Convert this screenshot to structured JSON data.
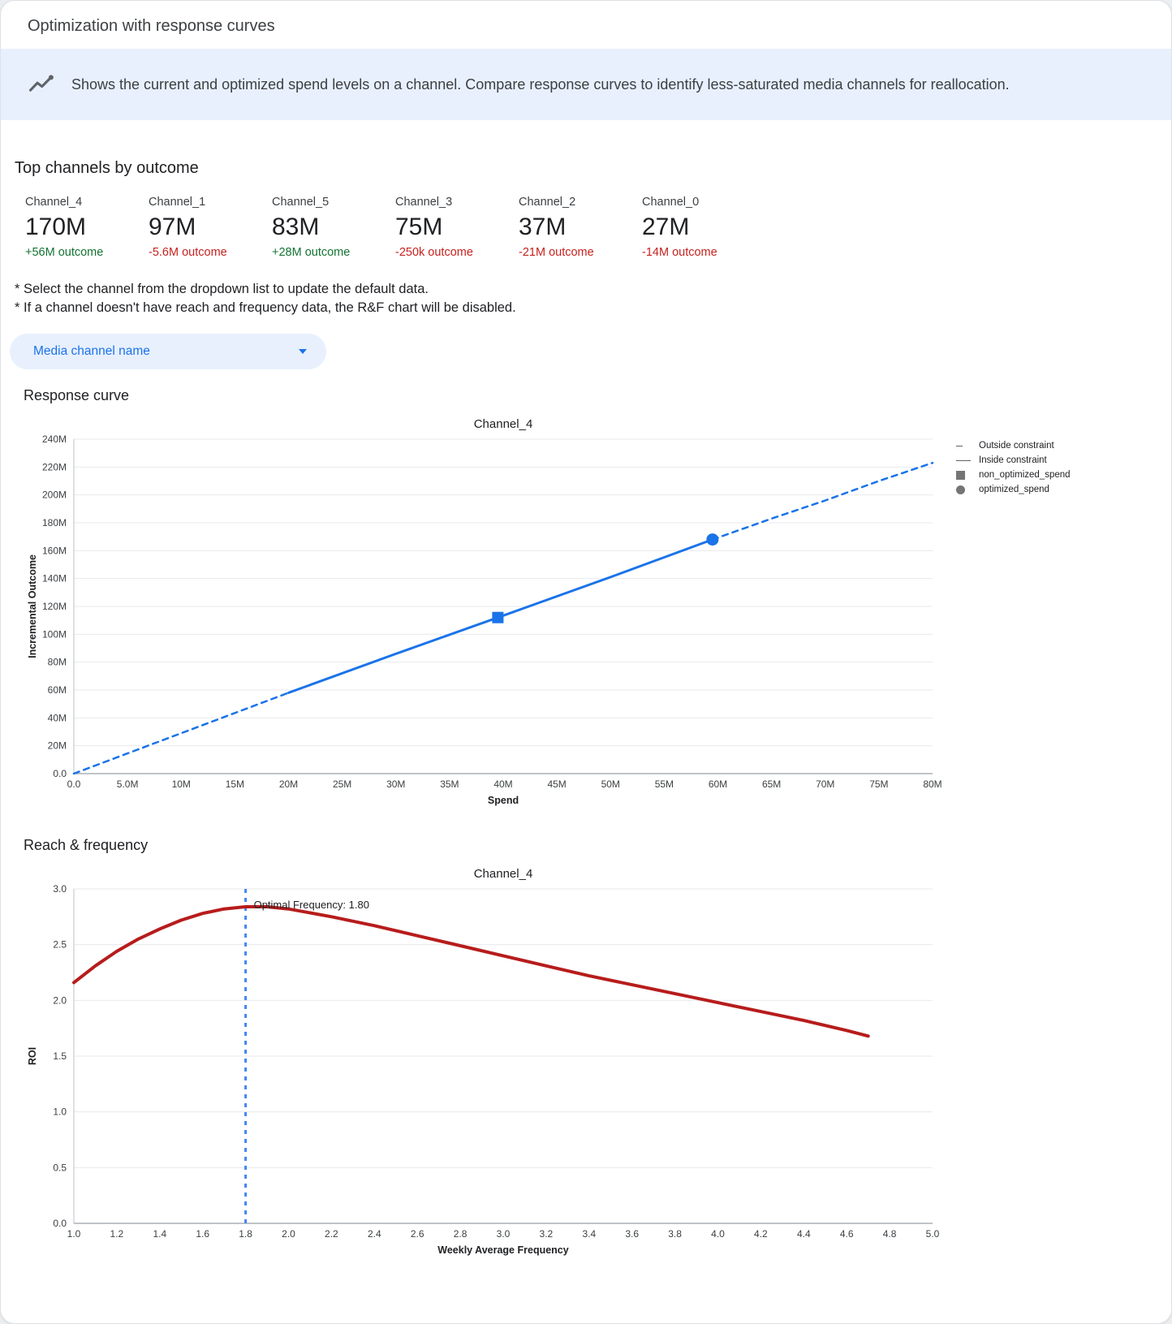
{
  "header": {
    "title": "Optimization with response curves"
  },
  "banner": {
    "text": "Shows the current and optimized spend levels on a channel. Compare response curves to identify less-saturated media channels for reallocation.",
    "icon": "insights-icon"
  },
  "theme": {
    "accent_blue": "#1a73e8",
    "banner_bg": "#e8f0fe",
    "positive_green": "#137333",
    "negative_red": "#c5221f",
    "curve_red": "#b71c1c",
    "vline_blue": "#4285f4",
    "legend_gray": "#757575"
  },
  "top_channels": {
    "heading": "Top channels by outcome",
    "cards": [
      {
        "name": "Channel_4",
        "value": "170M",
        "delta": "+56M outcome",
        "direction": "up"
      },
      {
        "name": "Channel_1",
        "value": "97M",
        "delta": "-5.6M outcome",
        "direction": "down"
      },
      {
        "name": "Channel_5",
        "value": "83M",
        "delta": "+28M outcome",
        "direction": "up"
      },
      {
        "name": "Channel_3",
        "value": "75M",
        "delta": "-250k outcome",
        "direction": "down"
      },
      {
        "name": "Channel_2",
        "value": "37M",
        "delta": "-21M outcome",
        "direction": "down"
      },
      {
        "name": "Channel_0",
        "value": "27M",
        "delta": "-14M outcome",
        "direction": "down"
      }
    ]
  },
  "notes": {
    "lines": [
      "* Select the channel from the dropdown list to update the default data.",
      "* If a channel doesn't have reach and frequency data, the R&F chart will be disabled."
    ]
  },
  "dropdown": {
    "label": "Media channel name"
  },
  "sections": {
    "response_curve": "Response curve",
    "reach_frequency": "Reach & frequency"
  },
  "chart_data": [
    {
      "type": "line",
      "title": "Channel_4",
      "xlabel": "Spend",
      "ylabel": "Incremental Outcome",
      "xlim": [
        0,
        80
      ],
      "ylim": [
        0,
        240
      ],
      "legend_position": "right",
      "grid": "horizontal",
      "x_ticks": [
        {
          "v": 0,
          "label": "0.0"
        },
        {
          "v": 5,
          "label": "5.0M"
        },
        {
          "v": 10,
          "label": "10M"
        },
        {
          "v": 15,
          "label": "15M"
        },
        {
          "v": 20,
          "label": "20M"
        },
        {
          "v": 25,
          "label": "25M"
        },
        {
          "v": 30,
          "label": "30M"
        },
        {
          "v": 35,
          "label": "35M"
        },
        {
          "v": 40,
          "label": "40M"
        },
        {
          "v": 45,
          "label": "45M"
        },
        {
          "v": 50,
          "label": "50M"
        },
        {
          "v": 55,
          "label": "55M"
        },
        {
          "v": 60,
          "label": "60M"
        },
        {
          "v": 65,
          "label": "65M"
        },
        {
          "v": 70,
          "label": "70M"
        },
        {
          "v": 75,
          "label": "75M"
        },
        {
          "v": 80,
          "label": "80M"
        }
      ],
      "y_ticks": [
        {
          "v": 0,
          "label": "0.0"
        },
        {
          "v": 20,
          "label": "20M"
        },
        {
          "v": 40,
          "label": "40M"
        },
        {
          "v": 60,
          "label": "60M"
        },
        {
          "v": 80,
          "label": "80M"
        },
        {
          "v": 100,
          "label": "100M"
        },
        {
          "v": 120,
          "label": "120M"
        },
        {
          "v": 140,
          "label": "140M"
        },
        {
          "v": 160,
          "label": "160M"
        },
        {
          "v": 180,
          "label": "180M"
        },
        {
          "v": 200,
          "label": "200M"
        },
        {
          "v": 220,
          "label": "220M"
        },
        {
          "v": 240,
          "label": "240M"
        }
      ],
      "series": [
        {
          "name": "outside-constraint-lower",
          "color": "#1a73e8",
          "dash": "7 6",
          "width": 2.5,
          "points": [
            [
              0,
              0
            ],
            [
              5,
              14.5
            ],
            [
              10,
              29
            ],
            [
              15,
              43.5
            ],
            [
              20,
              58
            ]
          ]
        },
        {
          "name": "inside-constraint",
          "color": "#1a73e8",
          "width": 3,
          "points": [
            [
              20,
              58
            ],
            [
              30,
              86
            ],
            [
              39.5,
              112
            ],
            [
              50,
              141
            ],
            [
              59.5,
              168
            ]
          ]
        },
        {
          "name": "outside-constraint-upper",
          "color": "#1a73e8",
          "dash": "7 6",
          "width": 2.5,
          "points": [
            [
              59.5,
              168
            ],
            [
              65,
              183
            ],
            [
              70,
              196
            ],
            [
              75,
              210
            ],
            [
              80,
              223
            ]
          ]
        }
      ],
      "markers": [
        {
          "name": "non_optimized_spend",
          "shape": "square",
          "x": 39.5,
          "y": 112,
          "color": "#1a73e8"
        },
        {
          "name": "optimized_spend",
          "shape": "circle",
          "x": 59.5,
          "y": 168,
          "color": "#1a73e8"
        }
      ],
      "legend": [
        {
          "label": "Outside constraint",
          "symbol": "dash"
        },
        {
          "label": "Inside constraint",
          "symbol": "line"
        },
        {
          "label": "non_optimized_spend",
          "symbol": "square"
        },
        {
          "label": "optimized_spend",
          "symbol": "circle"
        }
      ]
    },
    {
      "type": "line",
      "title": "Channel_4",
      "xlabel": "Weekly Average Frequency",
      "ylabel": "ROI",
      "xlim": [
        1.0,
        5.0
      ],
      "ylim": [
        0,
        3.0
      ],
      "grid": "horizontal",
      "x_ticks": [
        {
          "v": 1.0,
          "label": "1.0"
        },
        {
          "v": 1.2,
          "label": "1.2"
        },
        {
          "v": 1.4,
          "label": "1.4"
        },
        {
          "v": 1.6,
          "label": "1.6"
        },
        {
          "v": 1.8,
          "label": "1.8"
        },
        {
          "v": 2.0,
          "label": "2.0"
        },
        {
          "v": 2.2,
          "label": "2.2"
        },
        {
          "v": 2.4,
          "label": "2.4"
        },
        {
          "v": 2.6,
          "label": "2.6"
        },
        {
          "v": 2.8,
          "label": "2.8"
        },
        {
          "v": 3.0,
          "label": "3.0"
        },
        {
          "v": 3.2,
          "label": "3.2"
        },
        {
          "v": 3.4,
          "label": "3.4"
        },
        {
          "v": 3.6,
          "label": "3.6"
        },
        {
          "v": 3.8,
          "label": "3.8"
        },
        {
          "v": 4.0,
          "label": "4.0"
        },
        {
          "v": 4.2,
          "label": "4.2"
        },
        {
          "v": 4.4,
          "label": "4.4"
        },
        {
          "v": 4.6,
          "label": "4.6"
        },
        {
          "v": 4.8,
          "label": "4.8"
        },
        {
          "v": 5.0,
          "label": "5.0"
        }
      ],
      "y_ticks": [
        {
          "v": 0,
          "label": "0.0"
        },
        {
          "v": 0.5,
          "label": "0.5"
        },
        {
          "v": 1.0,
          "label": "1.0"
        },
        {
          "v": 1.5,
          "label": "1.5"
        },
        {
          "v": 2.0,
          "label": "2.0"
        },
        {
          "v": 2.5,
          "label": "2.5"
        },
        {
          "v": 3.0,
          "label": "3.0"
        }
      ],
      "vline": {
        "x": 1.8,
        "y_top": 3.0,
        "label": "Optimal Frequency: 1.80",
        "color": "#4285f4"
      },
      "series": [
        {
          "name": "roi-curve",
          "color": "#b71c1c",
          "width": 4,
          "points": [
            [
              1.0,
              2.16
            ],
            [
              1.1,
              2.31
            ],
            [
              1.2,
              2.44
            ],
            [
              1.3,
              2.55
            ],
            [
              1.4,
              2.64
            ],
            [
              1.5,
              2.72
            ],
            [
              1.6,
              2.78
            ],
            [
              1.7,
              2.82
            ],
            [
              1.8,
              2.84
            ],
            [
              1.9,
              2.84
            ],
            [
              2.0,
              2.82
            ],
            [
              2.2,
              2.75
            ],
            [
              2.4,
              2.67
            ],
            [
              2.6,
              2.58
            ],
            [
              2.8,
              2.49
            ],
            [
              3.0,
              2.4
            ],
            [
              3.2,
              2.31
            ],
            [
              3.4,
              2.22
            ],
            [
              3.6,
              2.14
            ],
            [
              3.8,
              2.06
            ],
            [
              4.0,
              1.98
            ],
            [
              4.2,
              1.9
            ],
            [
              4.4,
              1.82
            ],
            [
              4.6,
              1.73
            ],
            [
              4.7,
              1.68
            ]
          ]
        }
      ]
    }
  ]
}
